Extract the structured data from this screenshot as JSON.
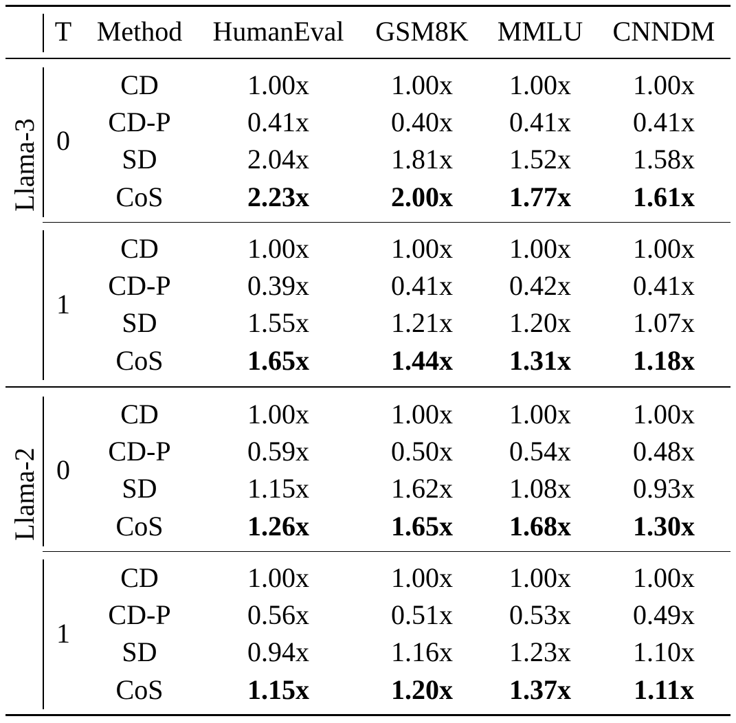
{
  "header": {
    "t": "T",
    "method": "Method",
    "columns": [
      "HumanEval",
      "GSM8K",
      "MMLU",
      "CNNDM"
    ]
  },
  "groups": [
    {
      "model": "Llama-3",
      "blocks": [
        {
          "t": "0",
          "rows": [
            {
              "method": "CD",
              "values": [
                "1.00x",
                "1.00x",
                "1.00x",
                "1.00x"
              ],
              "bold": false
            },
            {
              "method": "CD-P",
              "values": [
                "0.41x",
                "0.40x",
                "0.41x",
                "0.41x"
              ],
              "bold": false
            },
            {
              "method": "SD",
              "values": [
                "2.04x",
                "1.81x",
                "1.52x",
                "1.58x"
              ],
              "bold": false
            },
            {
              "method": "CoS",
              "values": [
                "2.23x",
                "2.00x",
                "1.77x",
                "1.61x"
              ],
              "bold": true
            }
          ]
        },
        {
          "t": "1",
          "rows": [
            {
              "method": "CD",
              "values": [
                "1.00x",
                "1.00x",
                "1.00x",
                "1.00x"
              ],
              "bold": false
            },
            {
              "method": "CD-P",
              "values": [
                "0.39x",
                "0.41x",
                "0.42x",
                "0.41x"
              ],
              "bold": false
            },
            {
              "method": "SD",
              "values": [
                "1.55x",
                "1.21x",
                "1.20x",
                "1.07x"
              ],
              "bold": false
            },
            {
              "method": "CoS",
              "values": [
                "1.65x",
                "1.44x",
                "1.31x",
                "1.18x"
              ],
              "bold": true
            }
          ]
        }
      ]
    },
    {
      "model": "Llama-2",
      "blocks": [
        {
          "t": "0",
          "rows": [
            {
              "method": "CD",
              "values": [
                "1.00x",
                "1.00x",
                "1.00x",
                "1.00x"
              ],
              "bold": false
            },
            {
              "method": "CD-P",
              "values": [
                "0.59x",
                "0.50x",
                "0.54x",
                "0.48x"
              ],
              "bold": false
            },
            {
              "method": "SD",
              "values": [
                "1.15x",
                "1.62x",
                "1.08x",
                "0.93x"
              ],
              "bold": false
            },
            {
              "method": "CoS",
              "values": [
                "1.26x",
                "1.65x",
                "1.68x",
                "1.30x"
              ],
              "bold": true
            }
          ]
        },
        {
          "t": "1",
          "rows": [
            {
              "method": "CD",
              "values": [
                "1.00x",
                "1.00x",
                "1.00x",
                "1.00x"
              ],
              "bold": false
            },
            {
              "method": "CD-P",
              "values": [
                "0.56x",
                "0.51x",
                "0.53x",
                "0.49x"
              ],
              "bold": false
            },
            {
              "method": "SD",
              "values": [
                "0.94x",
                "1.16x",
                "1.23x",
                "1.10x"
              ],
              "bold": false
            },
            {
              "method": "CoS",
              "values": [
                "1.15x",
                "1.20x",
                "1.37x",
                "1.11x"
              ],
              "bold": true
            }
          ]
        }
      ]
    }
  ]
}
